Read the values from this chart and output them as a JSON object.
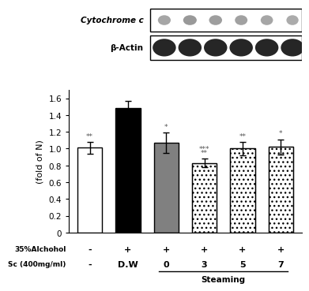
{
  "bar_values": [
    1.01,
    1.48,
    1.07,
    0.83,
    1.0,
    1.02
  ],
  "bar_errors": [
    0.07,
    0.09,
    0.12,
    0.05,
    0.08,
    0.09
  ],
  "bar_colors": [
    "white",
    "black",
    "#808080",
    "checker",
    "checker",
    "checker"
  ],
  "ylim": [
    0,
    1.7
  ],
  "yticks": [
    0,
    0.2,
    0.4,
    0.6,
    0.8,
    1.0,
    1.2,
    1.4,
    1.6
  ],
  "ylabel": "(fold of N)",
  "alcohol_labels": [
    "-",
    "+",
    "+",
    "+",
    "+",
    "+"
  ],
  "sc_labels": [
    "-",
    "D.W",
    "0",
    "3",
    "5",
    "7"
  ],
  "steaming_label": "Steaming",
  "alcohol_row_label": "35%Alchohol",
  "sc_row_label": "Sc (400mg/ml)",
  "sig_above": [
    "**",
    "",
    "*",
    "***",
    "**",
    "*"
  ],
  "sig_above2": [
    "",
    "",
    "",
    "**",
    "",
    ""
  ],
  "western_blot_label1": "Cytochrome c",
  "western_blot_label2": "β-Actin",
  "bar_width": 0.65,
  "cyto_band_grays": [
    0.65,
    0.6,
    0.62,
    0.63,
    0.65,
    0.67
  ],
  "cyto_band_widths": [
    0.055,
    0.058,
    0.056,
    0.054,
    0.053,
    0.052
  ],
  "actin_band_gray": 0.15
}
